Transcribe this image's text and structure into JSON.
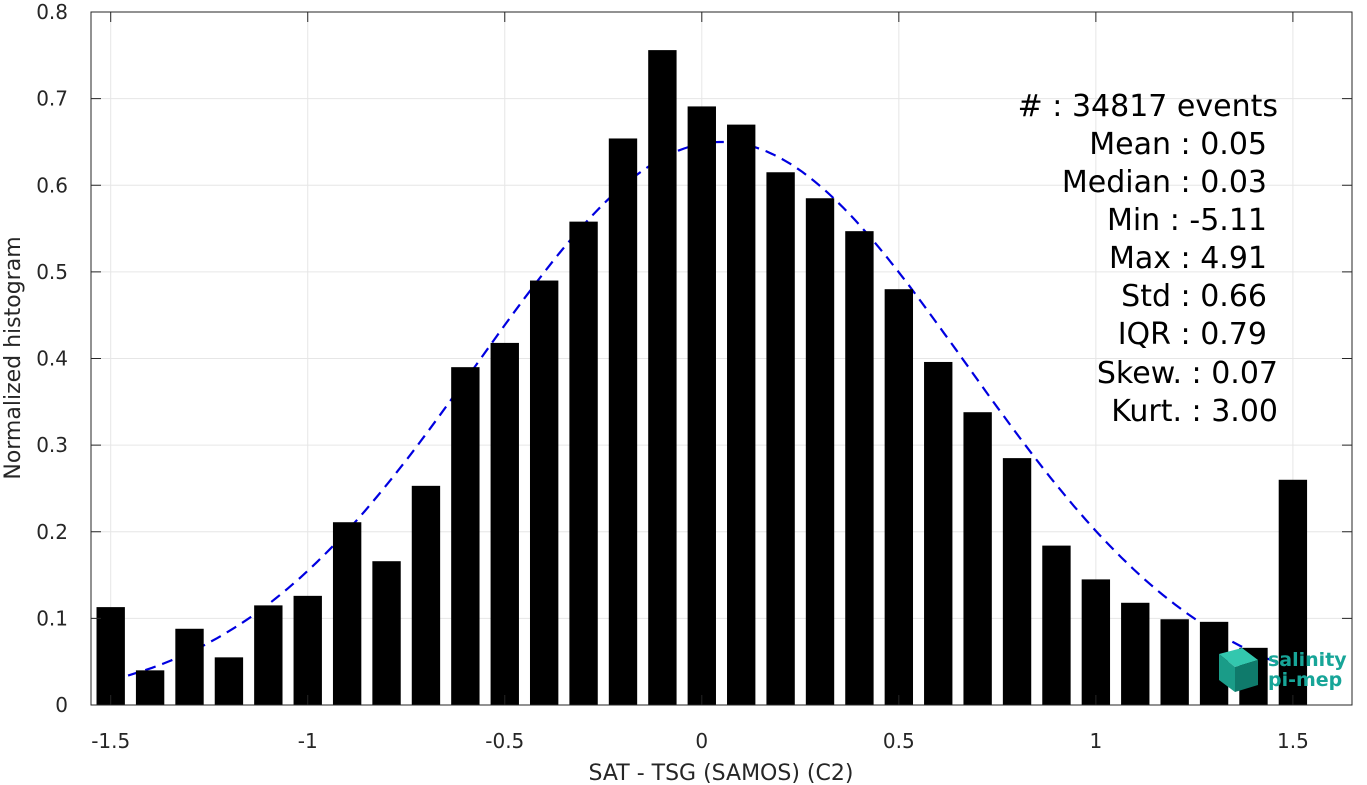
{
  "chart_data": {
    "type": "bar",
    "xlabel": "SAT - TSG (SAMOS) (C2)",
    "ylabel": "Normalized histogram",
    "xlim": [
      -1.55,
      1.65
    ],
    "ylim": [
      0,
      0.8
    ],
    "xticks": [
      -1.5,
      -1,
      -0.5,
      0,
      0.5,
      1,
      1.5
    ],
    "xtick_labels": [
      "-1.5",
      "-1",
      "-0.5",
      "0",
      "0.5",
      "1",
      "1.5"
    ],
    "yticks": [
      0,
      0.1,
      0.2,
      0.3,
      0.4,
      0.5,
      0.6,
      0.7,
      0.8
    ],
    "ytick_labels": [
      "0",
      "0.1",
      "0.2",
      "0.3",
      "0.4",
      "0.5",
      "0.6",
      "0.7",
      "0.8"
    ],
    "grid": true,
    "bar_color": "#000000",
    "bars": [
      {
        "x": -1.5,
        "value": 0.113
      },
      {
        "x": -1.4,
        "value": 0.04
      },
      {
        "x": -1.3,
        "value": 0.088
      },
      {
        "x": -1.2,
        "value": 0.055
      },
      {
        "x": -1.1,
        "value": 0.115
      },
      {
        "x": -1.0,
        "value": 0.126
      },
      {
        "x": -0.9,
        "value": 0.211
      },
      {
        "x": -0.8,
        "value": 0.166
      },
      {
        "x": -0.7,
        "value": 0.253
      },
      {
        "x": -0.6,
        "value": 0.39
      },
      {
        "x": -0.5,
        "value": 0.418
      },
      {
        "x": -0.4,
        "value": 0.49
      },
      {
        "x": -0.3,
        "value": 0.558
      },
      {
        "x": -0.2,
        "value": 0.654
      },
      {
        "x": -0.1,
        "value": 0.756
      },
      {
        "x": 0.0,
        "value": 0.691
      },
      {
        "x": 0.1,
        "value": 0.67
      },
      {
        "x": 0.2,
        "value": 0.615
      },
      {
        "x": 0.3,
        "value": 0.585
      },
      {
        "x": 0.4,
        "value": 0.547
      },
      {
        "x": 0.5,
        "value": 0.48
      },
      {
        "x": 0.6,
        "value": 0.396
      },
      {
        "x": 0.7,
        "value": 0.338
      },
      {
        "x": 0.8,
        "value": 0.285
      },
      {
        "x": 0.9,
        "value": 0.184
      },
      {
        "x": 1.0,
        "value": 0.145
      },
      {
        "x": 1.1,
        "value": 0.118
      },
      {
        "x": 1.2,
        "value": 0.099
      },
      {
        "x": 1.3,
        "value": 0.096
      },
      {
        "x": 1.4,
        "value": 0.066
      },
      {
        "x": 1.5,
        "value": 0.26
      }
    ],
    "fit_curve": {
      "style": "dashed",
      "color": "#0000e0",
      "distribution": "gaussian",
      "mean": 0.05,
      "std": 0.62,
      "peak": 0.65,
      "x_range": [
        -1.5,
        1.5
      ]
    },
    "stats": [
      {
        "label": "#  : 34817 events"
      },
      {
        "label": "Mean : 0.05"
      },
      {
        "label": "Median : 0.03"
      },
      {
        "label": "Min : -5.11"
      },
      {
        "label": "Max : 4.91"
      },
      {
        "label": "Std : 0.66"
      },
      {
        "label": "IQR : 0.79"
      },
      {
        "label": "Skew. : 0.07"
      },
      {
        "label": "Kurt. : 3.00"
      }
    ],
    "logo": {
      "line1": "salinity",
      "line2": "pi-mep",
      "color": "#17a598"
    }
  }
}
